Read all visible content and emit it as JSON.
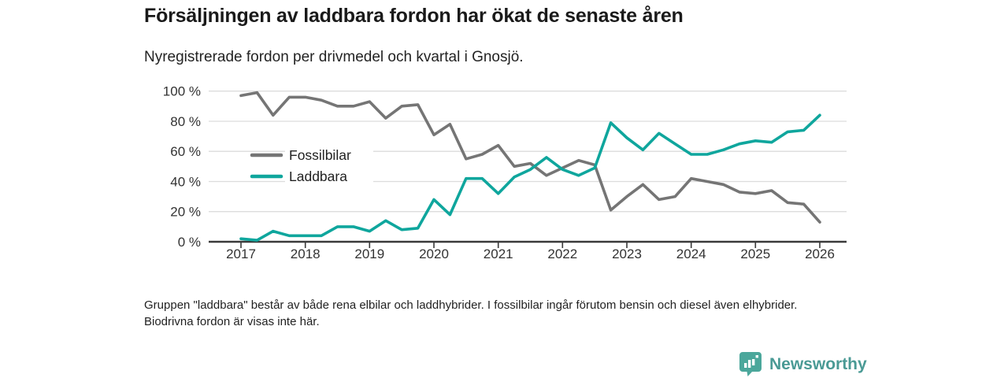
{
  "header": {
    "title": "Försäljningen av laddbara fordon har ökat de senaste åren",
    "subtitle": "Nyregistrerade fordon per drivmedel och kvartal i Gnosjö."
  },
  "chart_data": {
    "type": "line",
    "title": "Nyregistrerade fordon per drivmedel och kvartal i Gnosjö",
    "x_unit": "quarter",
    "x_start": "2017 Q1",
    "x_end": "2026 Q1",
    "points_per_year": 4,
    "x_tick_labels": [
      "2017",
      "2018",
      "2019",
      "2020",
      "2021",
      "2022",
      "2023",
      "2024",
      "2025",
      "2026"
    ],
    "y_tick_values": [
      0,
      20,
      40,
      60,
      80,
      100
    ],
    "y_tick_labels": [
      "0 %",
      "20 %",
      "40 %",
      "60 %",
      "80 %",
      "100 %"
    ],
    "ylim": [
      0,
      100
    ],
    "grid": "horizontal",
    "legend_position": "inside-upper-left",
    "series": [
      {
        "name": "Fossilbilar",
        "color": "#757575",
        "values": [
          97,
          99,
          84,
          96,
          96,
          94,
          90,
          90,
          93,
          82,
          90,
          91,
          71,
          78,
          55,
          58,
          64,
          50,
          52,
          44,
          49,
          54,
          51,
          21,
          30,
          38,
          28,
          30,
          42,
          40,
          38,
          33,
          32,
          34,
          26,
          25,
          13
        ]
      },
      {
        "name": "Laddbara",
        "color": "#0fa69d",
        "values": [
          2,
          1,
          7,
          4,
          4,
          4,
          10,
          10,
          7,
          14,
          8,
          9,
          28,
          18,
          42,
          42,
          32,
          43,
          48,
          56,
          48,
          44,
          49,
          79,
          69,
          61,
          72,
          65,
          58,
          58,
          61,
          65,
          67,
          66,
          73,
          74,
          84
        ]
      }
    ],
    "axis_color": "#3a3a3a",
    "gridline_color": "#dcdcdc",
    "tick_label_color": "#333333",
    "legend_text_color": "#222222"
  },
  "footnote": {
    "text": "Gruppen \"laddbara\" består av både rena elbilar och laddhybrider. I fossilbilar ingår förutom bensin och diesel även elhybrider. Biodrivna fordon är visas inte här."
  },
  "logo": {
    "label": "Newsworthy",
    "icon_color": "#4ba79b",
    "text_color": "#4a9a95"
  }
}
